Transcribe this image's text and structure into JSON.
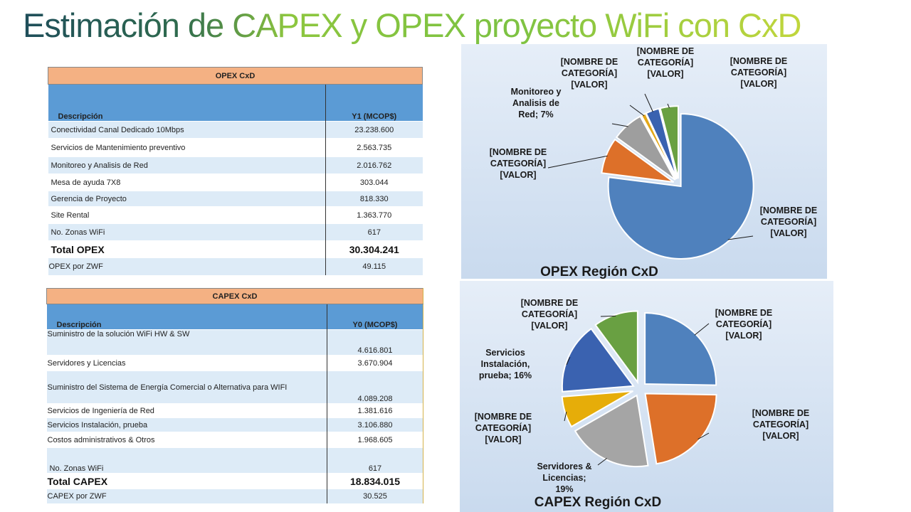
{
  "slide": {
    "title": "Estimación de CAPEX y OPEX proyecto WiFi con CxD"
  },
  "opex_table": {
    "title": "OPEX CxD",
    "col_desc": "Descripción",
    "col_value": "Y1 (MCOP$)",
    "rows": [
      {
        "desc": "Conectividad Canal Dedicado 10Mbps",
        "value": "23.238.600"
      },
      {
        "desc": "Servicios de Mantenimiento preventivo",
        "value": "2.563.735"
      },
      {
        "desc": "Monitoreo y Analisis de Red",
        "value": "2.016.762"
      },
      {
        "desc": "Mesa de ayuda 7X8",
        "value": "303.044"
      },
      {
        "desc": "Gerencia de Proyecto",
        "value": "818.330"
      },
      {
        "desc": "Site Rental",
        "value": "1.363.770"
      },
      {
        "desc": "No. Zonas WiFi",
        "value": "617"
      },
      {
        "desc": "Total OPEX",
        "value": "30.304.241",
        "total": true
      },
      {
        "desc": "OPEX por ZWF",
        "value": "49.115"
      }
    ]
  },
  "capex_table": {
    "title": "CAPEX CxD",
    "col_desc": "Descripción",
    "col_value": "Y0 (MCOP$)",
    "rows": [
      {
        "desc": "Suministro de la solución WiFi HW & SW",
        "value": "4.616.801"
      },
      {
        "desc": "Servidores y Licencias",
        "value": "3.670.904"
      },
      {
        "desc": "Suministro del Sistema de Energía Comercial o Alternativa para WIFI",
        "value": "4.089.208"
      },
      {
        "desc": "Servicios de Ingeniería de Red",
        "value": "1.381.616"
      },
      {
        "desc": "Servicios  Instalación, prueba",
        "value": "3.106.880"
      },
      {
        "desc": "Costos administrativos & Otros",
        "value": "1.968.605"
      },
      {
        "desc": "No. Zonas WiFi",
        "value": "617"
      },
      {
        "desc": "Total CAPEX",
        "value": "18.834.015",
        "total": true
      },
      {
        "desc": "CAPEX  por ZWF",
        "value": "30.525"
      }
    ]
  },
  "chart_data": [
    {
      "type": "pie",
      "title": "OPEX Región CxD",
      "colors": [
        "#4f81bd",
        "#dd7029",
        "#9e9e9e",
        "#e3a718",
        "#3a62b0",
        "#69a042"
      ],
      "slices": [
        {
          "value": 77,
          "label_lines": [
            "[NOMBRE DE",
            "CATEGORÍA]",
            "[VALOR]"
          ]
        },
        {
          "value": 8,
          "label_lines": [
            "[NOMBRE DE",
            "CATEGORÍA]",
            "[VALOR]"
          ]
        },
        {
          "value": 7,
          "label_lines": [
            "Monitoreo y",
            "Analisis de",
            "Red; 7%"
          ]
        },
        {
          "value": 1,
          "label_lines": [
            "[NOMBRE DE",
            "CATEGORÍA]",
            "[VALOR]"
          ]
        },
        {
          "value": 3,
          "label_lines": [
            "[NOMBRE DE",
            "CATEGORÍA]",
            "[VALOR]"
          ]
        },
        {
          "value": 4,
          "label_lines": [
            "[NOMBRE DE",
            "CATEGORÍA]",
            "[VALOR]"
          ]
        }
      ]
    },
    {
      "type": "pie",
      "title": "CAPEX Región CxD",
      "colors": [
        "#4f81bd",
        "#dd7029",
        "#a5a5a5",
        "#e6ad09",
        "#3a62b0",
        "#69a042"
      ],
      "slices": [
        {
          "value": 25,
          "label_lines": [
            "[NOMBRE DE",
            "CATEGORÍA]",
            "[VALOR]"
          ]
        },
        {
          "value": 22,
          "label_lines": [
            "[NOMBRE DE",
            "CATEGORÍA]",
            "[VALOR]"
          ]
        },
        {
          "value": 19,
          "label_lines": [
            "Servidores &",
            "Licencias;",
            "19%"
          ]
        },
        {
          "value": 7,
          "label_lines": [
            "[NOMBRE DE",
            "CATEGORÍA]",
            "[VALOR]"
          ]
        },
        {
          "value": 16,
          "label_lines": [
            "Servicios",
            "Instalación,",
            "prueba; 16%"
          ]
        },
        {
          "value": 10,
          "label_lines": [
            "[NOMBRE DE",
            "CATEGORÍA]",
            "[VALOR]"
          ]
        }
      ]
    }
  ]
}
